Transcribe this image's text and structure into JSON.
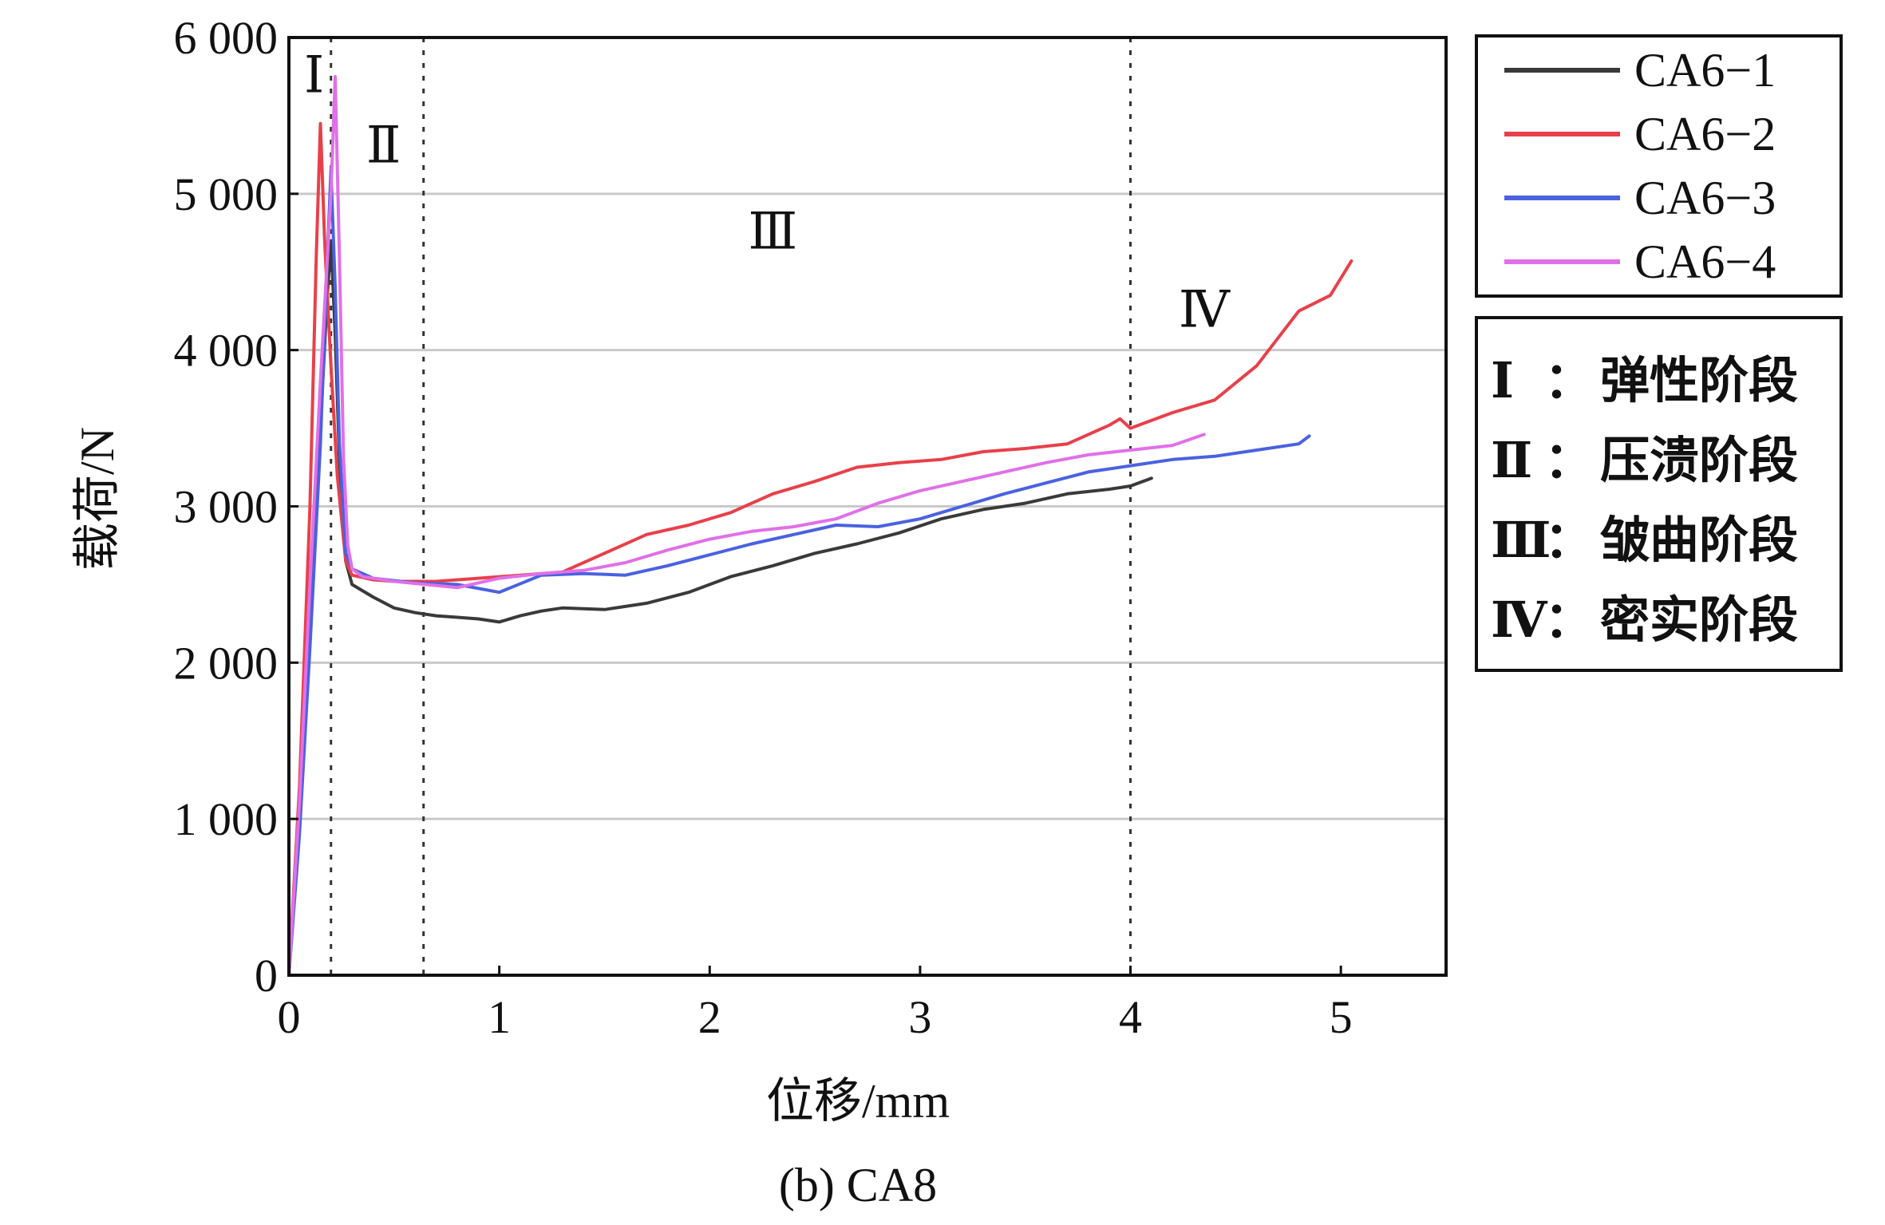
{
  "chart_data": {
    "type": "line",
    "caption": "(b) CA8",
    "xlabel": "位移/mm",
    "ylabel": "载荷/N",
    "xlim": [
      0,
      5.5
    ],
    "ylim": [
      0,
      6000
    ],
    "xticks": [
      0,
      1,
      2,
      3,
      4,
      5
    ],
    "xtick_labels": [
      "0",
      "1",
      "2",
      "3",
      "4",
      "5"
    ],
    "yticks": [
      0,
      1000,
      2000,
      3000,
      4000,
      5000,
      6000
    ],
    "ytick_labels": [
      "0",
      "1 000",
      "2 000",
      "3 000",
      "4 000",
      "5 000",
      "6 000"
    ],
    "grid": "horizontal",
    "stage_boundaries": [
      0.2,
      0.64,
      4.0
    ],
    "regions": [
      {
        "label": "Ⅰ",
        "x": 0.12,
        "y": 5650
      },
      {
        "label": "Ⅱ",
        "x": 0.45,
        "y": 5200
      },
      {
        "label": "Ⅲ",
        "x": 2.3,
        "y": 4650
      },
      {
        "label": "Ⅳ",
        "x": 4.35,
        "y": 4150
      }
    ],
    "series": [
      {
        "name": "CA6−1",
        "color": "#3a3a3a",
        "x": [
          0,
          0.05,
          0.1,
          0.15,
          0.18,
          0.2,
          0.22,
          0.24,
          0.27,
          0.3,
          0.4,
          0.5,
          0.6,
          0.7,
          0.8,
          0.9,
          1.0,
          1.1,
          1.2,
          1.3,
          1.5,
          1.7,
          1.9,
          2.1,
          2.3,
          2.5,
          2.7,
          2.9,
          3.1,
          3.3,
          3.5,
          3.7,
          3.9,
          4.0,
          4.1
        ],
        "y": [
          0,
          1000,
          2200,
          3500,
          4300,
          4700,
          4100,
          3300,
          2650,
          2500,
          2420,
          2350,
          2320,
          2300,
          2290,
          2280,
          2260,
          2300,
          2330,
          2350,
          2340,
          2380,
          2450,
          2550,
          2620,
          2700,
          2760,
          2830,
          2920,
          2980,
          3020,
          3080,
          3110,
          3130,
          3180
        ]
      },
      {
        "name": "CA6−2",
        "color": "#e8404a",
        "x": [
          0,
          0.05,
          0.1,
          0.13,
          0.15,
          0.17,
          0.2,
          0.23,
          0.27,
          0.3,
          0.4,
          0.5,
          0.7,
          0.9,
          1.1,
          1.3,
          1.5,
          1.7,
          1.9,
          2.1,
          2.3,
          2.5,
          2.7,
          2.9,
          3.1,
          3.3,
          3.5,
          3.7,
          3.9,
          3.95,
          4.0,
          4.2,
          4.4,
          4.6,
          4.8,
          4.95,
          5.05
        ],
        "y": [
          0,
          1200,
          3000,
          4600,
          5450,
          4700,
          3900,
          3200,
          2650,
          2560,
          2530,
          2520,
          2520,
          2540,
          2560,
          2580,
          2700,
          2820,
          2880,
          2960,
          3080,
          3160,
          3250,
          3280,
          3300,
          3350,
          3370,
          3400,
          3520,
          3560,
          3500,
          3600,
          3680,
          3900,
          4250,
          4350,
          4570
        ]
      },
      {
        "name": "CA6−3",
        "color": "#4a62e0",
        "x": [
          0,
          0.05,
          0.1,
          0.15,
          0.18,
          0.2,
          0.22,
          0.24,
          0.27,
          0.3,
          0.4,
          0.6,
          0.8,
          1.0,
          1.2,
          1.4,
          1.6,
          1.8,
          2.0,
          2.2,
          2.4,
          2.6,
          2.8,
          3.0,
          3.2,
          3.4,
          3.6,
          3.8,
          4.0,
          4.2,
          4.4,
          4.6,
          4.8,
          4.85
        ],
        "y": [
          0,
          900,
          2100,
          3400,
          4500,
          5150,
          4400,
          3400,
          2700,
          2600,
          2540,
          2510,
          2500,
          2450,
          2560,
          2570,
          2560,
          2620,
          2690,
          2760,
          2820,
          2880,
          2870,
          2920,
          3000,
          3080,
          3150,
          3220,
          3260,
          3300,
          3320,
          3360,
          3400,
          3450
        ]
      },
      {
        "name": "CA6−4",
        "color": "#e070e8",
        "x": [
          0,
          0.05,
          0.1,
          0.15,
          0.2,
          0.22,
          0.24,
          0.26,
          0.28,
          0.3,
          0.35,
          0.5,
          0.8,
          1.0,
          1.2,
          1.4,
          1.6,
          1.8,
          2.0,
          2.2,
          2.4,
          2.6,
          2.8,
          3.0,
          3.2,
          3.4,
          3.6,
          3.8,
          4.0,
          4.2,
          4.35
        ],
        "y": [
          0,
          1100,
          2500,
          3800,
          5000,
          5750,
          4600,
          3300,
          2750,
          2600,
          2550,
          2520,
          2480,
          2540,
          2570,
          2590,
          2640,
          2720,
          2790,
          2840,
          2870,
          2920,
          3020,
          3100,
          3160,
          3220,
          3280,
          3330,
          3360,
          3390,
          3460
        ]
      }
    ],
    "phases": [
      {
        "numeral": "Ⅰ",
        "sep": "：",
        "text": "弹性阶段"
      },
      {
        "numeral": "Ⅱ",
        "sep": "：",
        "text": "压溃阶段"
      },
      {
        "numeral": "Ⅲ",
        "sep": "：",
        "text": "皱曲阶段"
      },
      {
        "numeral": "Ⅳ",
        "sep": "：",
        "text": "密实阶段"
      }
    ]
  }
}
